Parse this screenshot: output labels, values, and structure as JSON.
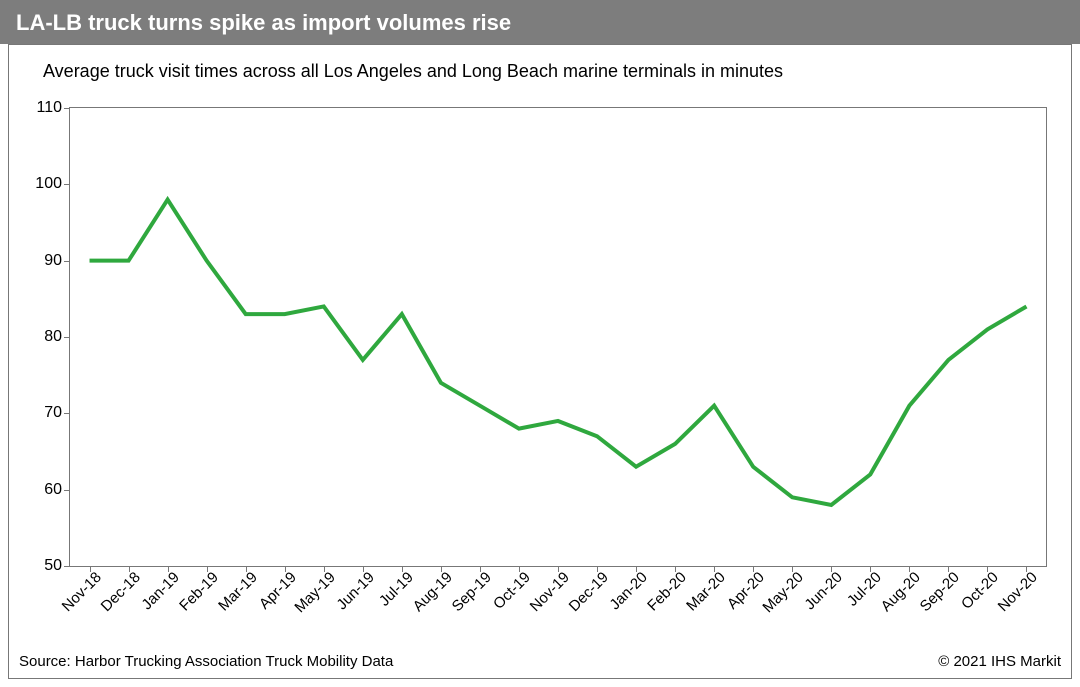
{
  "title": "LA-LB truck turns spike as import volumes rise",
  "subtitle": "Average truck visit times across all Los Angeles and Long Beach marine terminals in minutes",
  "source_text": "Source: Harbor Trucking Association Truck Mobility Data",
  "copyright_text": "© 2021 IHS Markit",
  "chart": {
    "type": "line",
    "ylim": [
      50,
      110
    ],
    "ytick_step": 10,
    "yticks": [
      50,
      60,
      70,
      80,
      90,
      100,
      110
    ],
    "categories": [
      "Nov-18",
      "Dec-18",
      "Jan-19",
      "Feb-19",
      "Mar-19",
      "Apr-19",
      "May-19",
      "Jun-19",
      "Jul-19",
      "Aug-19",
      "Sep-19",
      "Oct-19",
      "Nov-19",
      "Dec-19",
      "Jan-20",
      "Feb-20",
      "Mar-20",
      "Apr-20",
      "May-20",
      "Jun-20",
      "Jul-20",
      "Aug-20",
      "Sep-20",
      "Oct-20",
      "Nov-20"
    ],
    "values": [
      90,
      90,
      98,
      90,
      83,
      83,
      84,
      77,
      83,
      74,
      71,
      68,
      69,
      67,
      63,
      66,
      71,
      63,
      59,
      58,
      62,
      71,
      77,
      81,
      84
    ],
    "line_color": "#2fa83e",
    "line_width": 4,
    "axis_color": "#777777",
    "background_color": "#ffffff",
    "tick_font_size": 16,
    "title_bar_bg": "#7d7d7d",
    "title_color": "#ffffff",
    "title_fontsize": 22,
    "subtitle_fontsize": 18,
    "x_label_rotation_deg": -45
  }
}
